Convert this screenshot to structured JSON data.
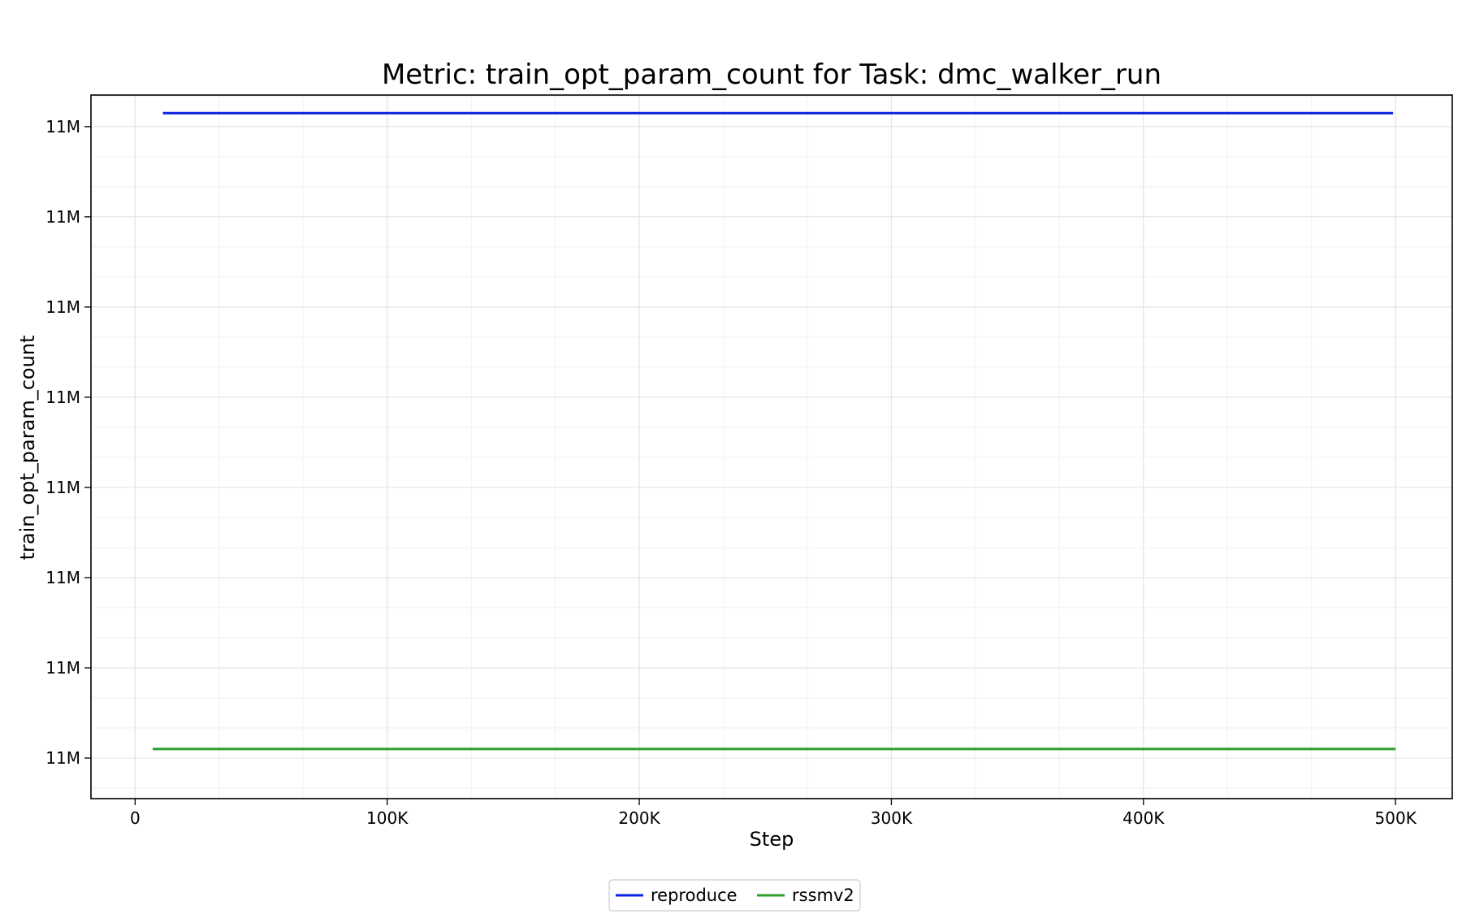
{
  "chart_data": {
    "type": "line",
    "title": "Metric: train_opt_param_count for Task: dmc_walker_run",
    "xlabel": "Step",
    "ylabel": "train_opt_param_count",
    "xlim": [
      -17500,
      522500
    ],
    "ylim": [
      10998050,
      11005850
    ],
    "x_ticks": [
      {
        "value": 0,
        "label": "0"
      },
      {
        "value": 100000,
        "label": "100K"
      },
      {
        "value": 200000,
        "label": "200K"
      },
      {
        "value": 300000,
        "label": "300K"
      },
      {
        "value": 400000,
        "label": "400K"
      },
      {
        "value": 500000,
        "label": "500K"
      }
    ],
    "y_ticks": [
      {
        "value": 10998500,
        "label": "11M"
      },
      {
        "value": 10999500,
        "label": "11M"
      },
      {
        "value": 11000500,
        "label": "11M"
      },
      {
        "value": 11001500,
        "label": "11M"
      },
      {
        "value": 11002500,
        "label": "11M"
      },
      {
        "value": 11003500,
        "label": "11M"
      },
      {
        "value": 11004500,
        "label": "11M"
      },
      {
        "value": 11005500,
        "label": "11M"
      }
    ],
    "grid": true,
    "legend_position": "bottom-center",
    "series": [
      {
        "name": "reproduce",
        "color": "#0a22e0",
        "x": [
          11000,
          499000
        ],
        "y": [
          11005650,
          11005650
        ]
      },
      {
        "name": "rssmv2",
        "color": "#2ca02c",
        "x": [
          7000,
          500000
        ],
        "y": [
          10998600,
          10998600
        ]
      }
    ]
  }
}
